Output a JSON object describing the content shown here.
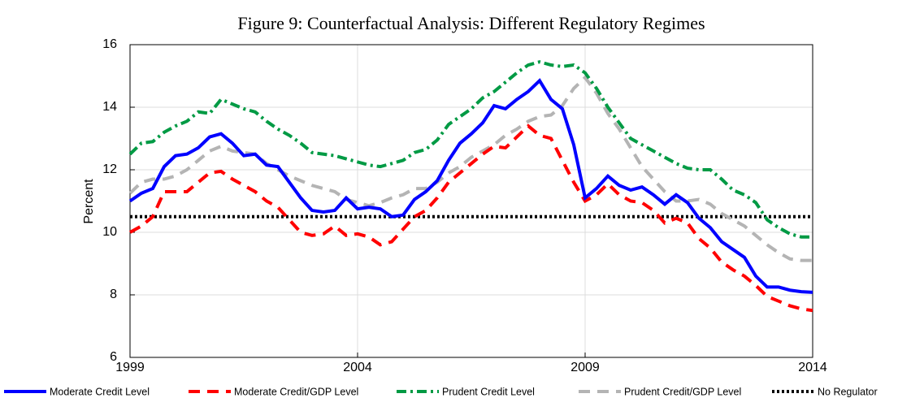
{
  "chart_data": {
    "type": "line",
    "title": "Figure 9: Counterfactual Analysis: Different Regulatory Regimes",
    "y_label": "Percent",
    "x": [
      1999,
      1999.25,
      1999.5,
      1999.75,
      2000,
      2000.25,
      2000.5,
      2000.75,
      2001,
      2001.25,
      2001.5,
      2001.75,
      2002,
      2002.25,
      2002.5,
      2002.75,
      2003,
      2003.25,
      2003.5,
      2003.75,
      2004,
      2004.25,
      2004.5,
      2004.75,
      2005,
      2005.25,
      2005.5,
      2005.75,
      2006,
      2006.25,
      2006.5,
      2006.75,
      2007,
      2007.25,
      2007.5,
      2007.75,
      2008,
      2008.25,
      2008.5,
      2008.75,
      2009,
      2009.25,
      2009.5,
      2009.75,
      2010,
      2010.25,
      2010.5,
      2010.75,
      2011,
      2011.25,
      2011.5,
      2011.75,
      2012,
      2012.25,
      2012.5,
      2012.75,
      2013,
      2013.25,
      2013.5,
      2013.75,
      2014
    ],
    "series": [
      {
        "name": "Moderate Credit Level",
        "color": "#0000ff",
        "style": "solid",
        "values": [
          11.0,
          11.25,
          11.4,
          12.1,
          12.45,
          12.5,
          12.7,
          13.05,
          13.15,
          12.85,
          12.45,
          12.5,
          12.15,
          12.1,
          11.6,
          11.1,
          10.7,
          10.65,
          10.7,
          11.1,
          10.75,
          10.8,
          10.75,
          10.5,
          10.55,
          11.05,
          11.3,
          11.65,
          12.3,
          12.85,
          13.15,
          13.5,
          14.05,
          13.95,
          14.25,
          14.5,
          14.85,
          14.25,
          13.95,
          12.8,
          11.1,
          11.4,
          11.8,
          11.5,
          11.35,
          11.45,
          11.2,
          10.9,
          11.2,
          10.95,
          10.45,
          10.15,
          9.7,
          9.45,
          9.2,
          8.6,
          8.25,
          8.25,
          8.15,
          8.1,
          8.08
        ]
      },
      {
        "name": "Moderate Credit/GDP Level",
        "color": "#ff0000",
        "style": "dashed",
        "values": [
          10.0,
          10.2,
          10.5,
          11.3,
          11.3,
          11.3,
          11.6,
          11.9,
          11.95,
          11.7,
          11.5,
          11.3,
          11.0,
          10.8,
          10.4,
          10.0,
          9.9,
          9.95,
          10.2,
          9.9,
          9.95,
          9.85,
          9.6,
          9.7,
          10.1,
          10.5,
          10.7,
          11.1,
          11.6,
          11.9,
          12.2,
          12.5,
          12.75,
          12.7,
          13.05,
          13.4,
          13.1,
          13.0,
          12.3,
          11.6,
          11.0,
          11.2,
          11.55,
          11.2,
          11.0,
          10.95,
          10.7,
          10.3,
          10.45,
          10.3,
          9.8,
          9.5,
          9.05,
          8.8,
          8.6,
          8.3,
          7.95,
          7.8,
          7.65,
          7.55,
          7.5
        ]
      },
      {
        "name": "Prudent Credit Level",
        "color": "#009a44",
        "style": "dashdot",
        "values": [
          12.5,
          12.85,
          12.9,
          13.2,
          13.4,
          13.55,
          13.85,
          13.8,
          14.25,
          14.1,
          13.95,
          13.85,
          13.55,
          13.3,
          13.1,
          12.85,
          12.55,
          12.5,
          12.45,
          12.35,
          12.25,
          12.15,
          12.1,
          12.2,
          12.3,
          12.55,
          12.65,
          12.95,
          13.45,
          13.7,
          13.95,
          14.3,
          14.5,
          14.8,
          15.1,
          15.35,
          15.45,
          15.35,
          15.3,
          15.35,
          15.1,
          14.6,
          14.0,
          13.5,
          13.0,
          12.8,
          12.6,
          12.4,
          12.2,
          12.05,
          12.0,
          12.0,
          11.7,
          11.35,
          11.2,
          10.95,
          10.4,
          10.15,
          9.95,
          9.85,
          9.85
        ]
      },
      {
        "name": "Prudent Credit/GDP Level",
        "color": "#b4b4b4",
        "style": "dashed",
        "values": [
          11.25,
          11.6,
          11.7,
          11.7,
          11.8,
          12.0,
          12.3,
          12.6,
          12.75,
          12.6,
          12.55,
          12.5,
          12.2,
          12.0,
          11.8,
          11.65,
          11.5,
          11.4,
          11.3,
          11.05,
          10.95,
          10.85,
          10.95,
          11.1,
          11.2,
          11.4,
          11.4,
          11.6,
          11.9,
          12.1,
          12.4,
          12.6,
          12.8,
          13.1,
          13.3,
          13.55,
          13.7,
          13.75,
          14.05,
          14.6,
          14.95,
          14.45,
          13.8,
          13.3,
          12.7,
          12.1,
          11.7,
          11.3,
          11.0,
          11.0,
          11.05,
          10.9,
          10.6,
          10.4,
          10.2,
          9.9,
          9.6,
          9.35,
          9.15,
          9.1,
          9.1
        ]
      },
      {
        "name": "No Regulator",
        "color": "#000000",
        "style": "dotted",
        "values": [
          10.5,
          10.5,
          10.5,
          10.5,
          10.5,
          10.5,
          10.5,
          10.5,
          10.5,
          10.5,
          10.5,
          10.5,
          10.5,
          10.5,
          10.5,
          10.5,
          10.5,
          10.5,
          10.5,
          10.5,
          10.5,
          10.5,
          10.5,
          10.5,
          10.5,
          10.5,
          10.5,
          10.5,
          10.5,
          10.5,
          10.5,
          10.5,
          10.5,
          10.5,
          10.5,
          10.5,
          10.5,
          10.5,
          10.5,
          10.5,
          10.5,
          10.5,
          10.5,
          10.5,
          10.5,
          10.5,
          10.5,
          10.5,
          10.5,
          10.5,
          10.5,
          10.5,
          10.5,
          10.5,
          10.5,
          10.5,
          10.5,
          10.5,
          10.5,
          10.5,
          10.5
        ]
      }
    ],
    "xlim": [
      1999,
      2014
    ],
    "xticks": [
      1999,
      2004,
      2009,
      2014
    ],
    "ylim": [
      6,
      16
    ],
    "yticks": [
      6,
      8,
      10,
      12,
      14,
      16
    ],
    "grid": true,
    "legend": "bottom"
  }
}
